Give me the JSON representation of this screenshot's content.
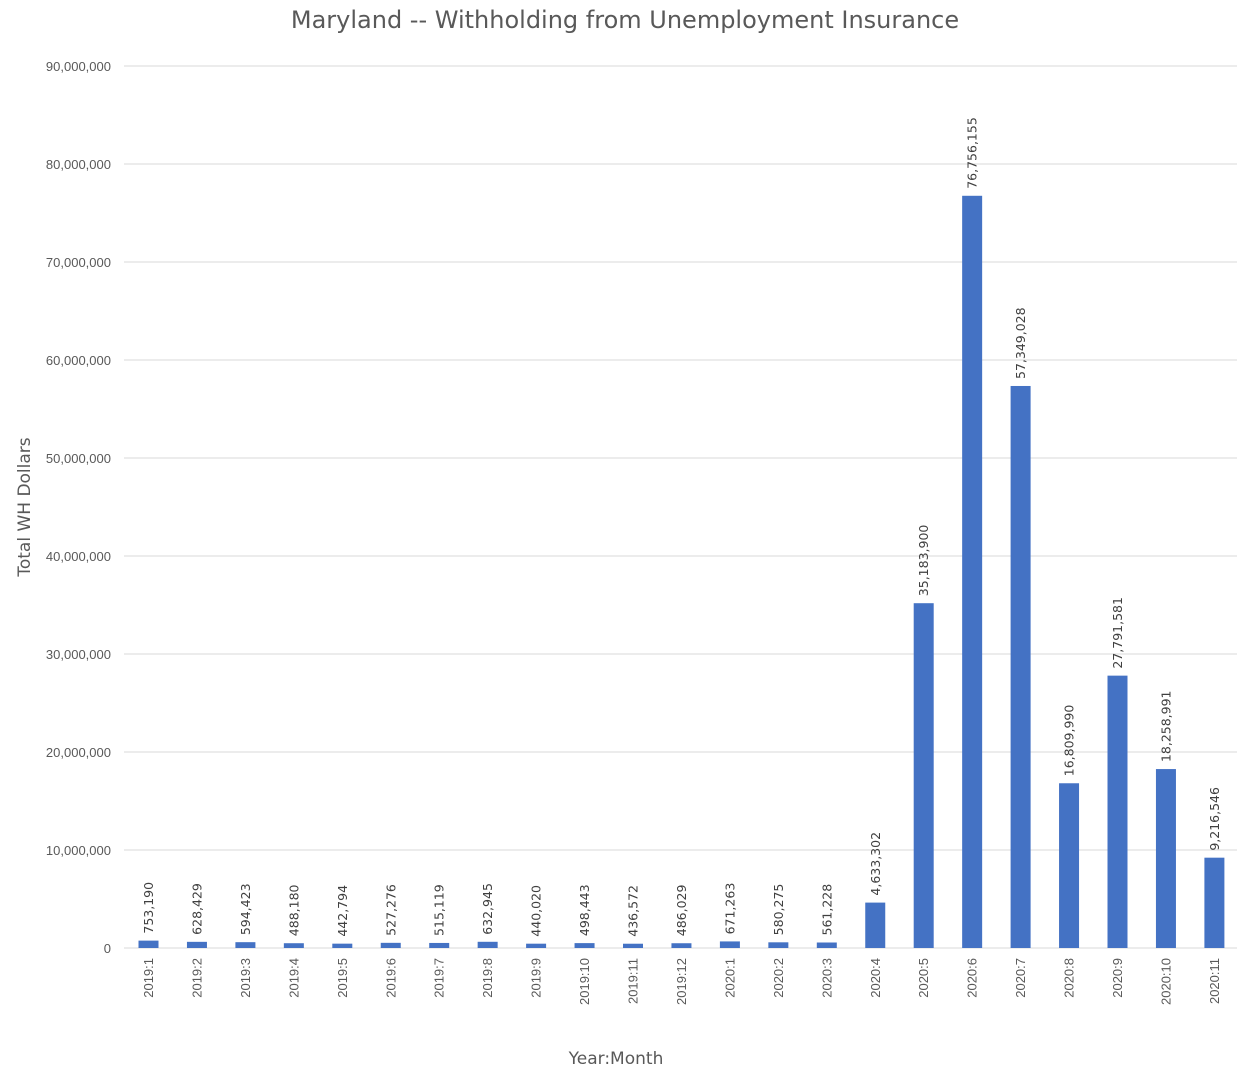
{
  "chart_data": {
    "type": "bar",
    "title": "Maryland -- Withholding from Unemployment Insurance",
    "xlabel": "Year:Month",
    "ylabel": "Total WH Dollars",
    "ylim": [
      0,
      90000000
    ],
    "yticks": [
      0,
      10000000,
      20000000,
      30000000,
      40000000,
      50000000,
      60000000,
      70000000,
      80000000,
      90000000
    ],
    "ytick_labels": [
      "0",
      "10,000,000",
      "20,000,000",
      "30,000,000",
      "40,000,000",
      "50,000,000",
      "60,000,000",
      "70,000,000",
      "80,000,000",
      "90,000,000"
    ],
    "grid": true,
    "legend": "none",
    "bar_color": "#4472c4",
    "categories": [
      "2019:1",
      "2019:2",
      "2019:3",
      "2019:4",
      "2019:5",
      "2019:6",
      "2019:7",
      "2019:8",
      "2019:9",
      "2019:10",
      "2019:11",
      "2019:12",
      "2020:1",
      "2020:2",
      "2020:3",
      "2020:4",
      "2020:5",
      "2020:6",
      "2020:7",
      "2020:8",
      "2020:9",
      "2020:10",
      "2020:11"
    ],
    "values": [
      753190,
      628429,
      594423,
      488180,
      442794,
      527276,
      515119,
      632945,
      440020,
      498443,
      436572,
      486029,
      671263,
      580275,
      561228,
      4633302,
      35183900,
      76756155,
      57349028,
      16809990,
      27791581,
      18258991,
      9216546
    ],
    "data_labels": [
      "753,190",
      "628,429",
      "594,423",
      "488,180",
      "442,794",
      "527,276",
      "515,119",
      "632,945",
      "440,020",
      "498,443",
      "436,572",
      "486,029",
      "671,263",
      "580,275",
      "561,228",
      "4,633,302",
      "35,183,900",
      "76,756,155",
      "57,349,028",
      "16,809,990",
      "27,791,581",
      "18,258,991",
      "9,216,546"
    ]
  }
}
